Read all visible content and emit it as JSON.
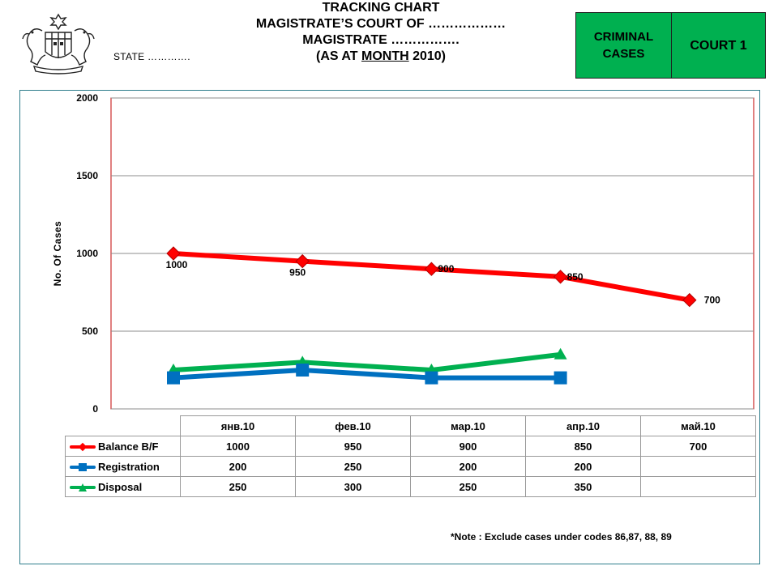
{
  "header": {
    "title_line1": "TRACKING CHART",
    "title_line2": "MAGISTRATE’S COURT OF ………………",
    "title_line3": "MAGISTRATE …………….",
    "title_line4_prefix": "(AS AT ",
    "title_line4_underlined": "MONTH",
    "title_line4_suffix": " 2010)",
    "state_label": "STATE …………."
  },
  "case_box": {
    "type_label": "CRIMINAL CASES",
    "court_label": "COURT 1",
    "color": "#00b050"
  },
  "note": "*Note : Exclude cases under codes 86,87, 88, 89",
  "chart_data": {
    "type": "line",
    "title": "",
    "xlabel": "",
    "ylabel": "No. Of Cases",
    "ylim": [
      0,
      2000
    ],
    "yticks": [
      0,
      500,
      1000,
      1500,
      2000
    ],
    "grid": true,
    "legend": "table-below",
    "categories": [
      "янв.10",
      "фев.10",
      "мар.10",
      "апр.10",
      "май.10"
    ],
    "series": [
      {
        "name": "Balance B/F",
        "values": [
          1000,
          950,
          900,
          850,
          700
        ],
        "color": "#ff0000",
        "marker": "diamond",
        "labeled": true
      },
      {
        "name": "Registration",
        "values": [
          200,
          250,
          200,
          200,
          null
        ],
        "color": "#0070c0",
        "marker": "square",
        "labeled": false
      },
      {
        "name": "Disposal",
        "values": [
          250,
          300,
          250,
          350,
          null
        ],
        "color": "#00b050",
        "marker": "triangle",
        "labeled": false
      }
    ]
  }
}
